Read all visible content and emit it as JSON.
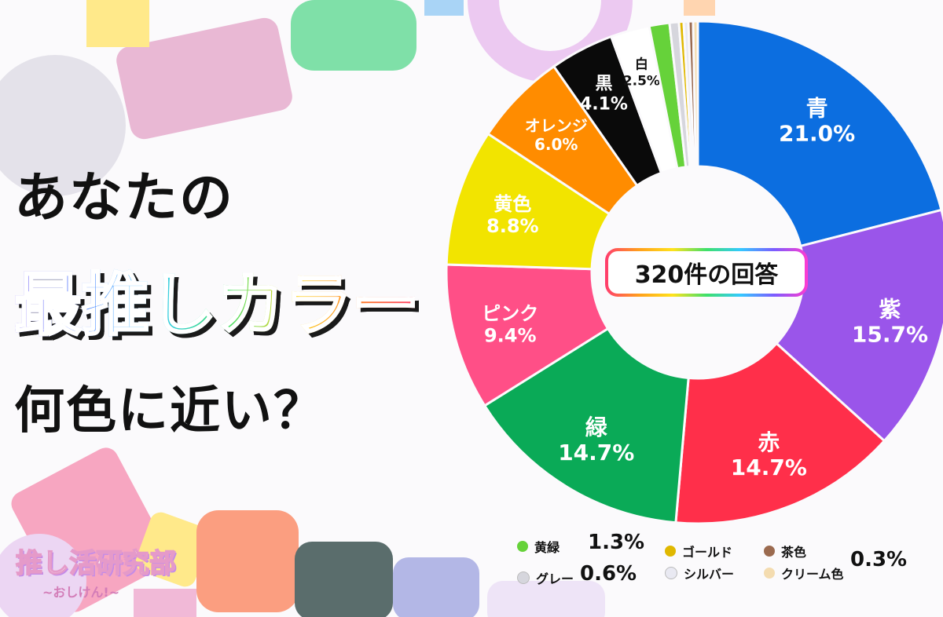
{
  "headline": {
    "line1": "あなたの",
    "line2": "最推しカラー",
    "line3": "何色に近い？"
  },
  "center_label": "320件の回答",
  "logo": {
    "title": "推し活研究部",
    "subtitle": "~おしけん!~"
  },
  "chart_data": {
    "type": "pie",
    "title": "",
    "total_responses": 320,
    "slices": [
      {
        "label": "青",
        "value": 21.0,
        "display": "21.0%",
        "color": "#0c6ee0"
      },
      {
        "label": "紫",
        "value": 15.7,
        "display": "15.7%",
        "color": "#9a55ea"
      },
      {
        "label": "赤",
        "value": 14.7,
        "display": "14.7%",
        "color": "#ff2f4a"
      },
      {
        "label": "緑",
        "value": 14.7,
        "display": "14.7%",
        "color": "#0aaa57"
      },
      {
        "label": "ピンク",
        "value": 9.4,
        "display": "9.4%",
        "color": "#ff4f87"
      },
      {
        "label": "黄色",
        "value": 8.8,
        "display": "8.8%",
        "color": "#f2e400"
      },
      {
        "label": "オレンジ",
        "value": 6.0,
        "display": "6.0%",
        "color": "#ff8c00"
      },
      {
        "label": "黒",
        "value": 4.1,
        "display": "4.1%",
        "color": "#0a0a0a"
      },
      {
        "label": "白",
        "value": 2.5,
        "display": "2.5%",
        "color": "#ffffff"
      },
      {
        "label": "黄緑",
        "value": 1.3,
        "display": "1.3%",
        "color": "#66d23a"
      },
      {
        "label": "グレー",
        "value": 0.6,
        "display": "0.6%",
        "color": "#d6d6dd"
      },
      {
        "label": "ゴールド",
        "value": 0.3,
        "display": "0.3%",
        "color": "#e0b800"
      },
      {
        "label": "シルバー",
        "value": 0.3,
        "display": "0.3%",
        "color": "#e9e9f2"
      },
      {
        "label": "茶色",
        "value": 0.3,
        "display": "0.3%",
        "color": "#9b6a4f"
      },
      {
        "label": "クリーム色",
        "value": 0.3,
        "display": "0.3%",
        "color": "#f4dcb0"
      }
    ]
  },
  "legend": {
    "items": [
      {
        "label": "黄緑",
        "color": "#66d23a"
      },
      {
        "label": "ゴールド",
        "color": "#e0b800"
      },
      {
        "label": "茶色",
        "color": "#9b6a4f"
      },
      {
        "label": "グレー",
        "color": "#d6d6dd"
      },
      {
        "label": "シルバー",
        "color": "#e9e9f2"
      },
      {
        "label": "クリーム色",
        "color": "#f4dcb0"
      }
    ],
    "values": [
      "1.3%",
      "0.6%",
      "0.3%"
    ]
  }
}
